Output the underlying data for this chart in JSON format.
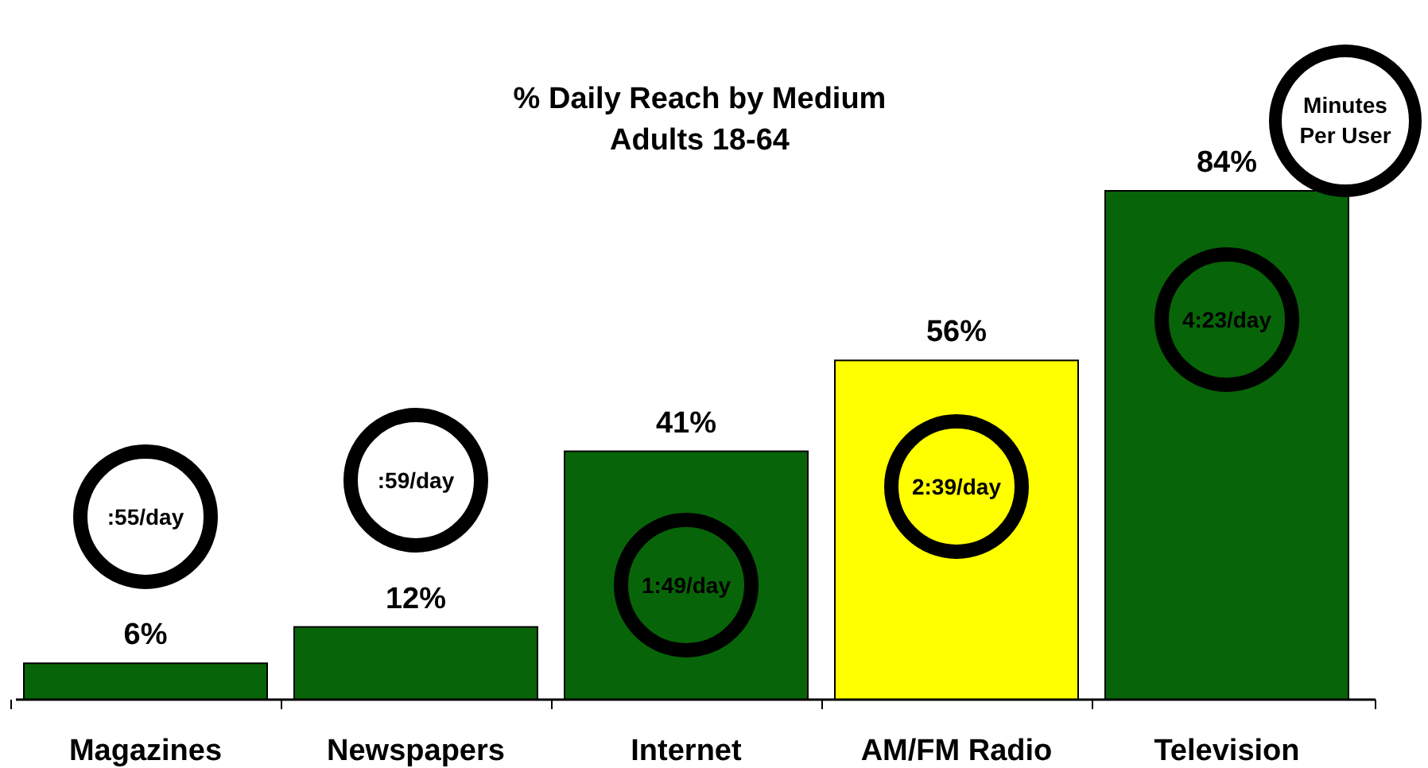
{
  "chart_data": {
    "type": "bar",
    "title": "% Daily Reach by Medium",
    "subtitle": "Adults 18-64",
    "categories": [
      "Magazines",
      "Newspapers",
      "Internet",
      "AM/FM Radio",
      "Television"
    ],
    "values": [
      6,
      12,
      41,
      56,
      84
    ],
    "colors": [
      "#086408",
      "#086408",
      "#086408",
      "#ffff00",
      "#086408"
    ],
    "value_labels": [
      "6%",
      "12%",
      "41%",
      "56%",
      "84%"
    ],
    "annotations": [
      ":55/day",
      ":59/day",
      "1:49/day",
      "2:39/day",
      "4:23/day",
      "Minutes Per User"
    ]
  }
}
